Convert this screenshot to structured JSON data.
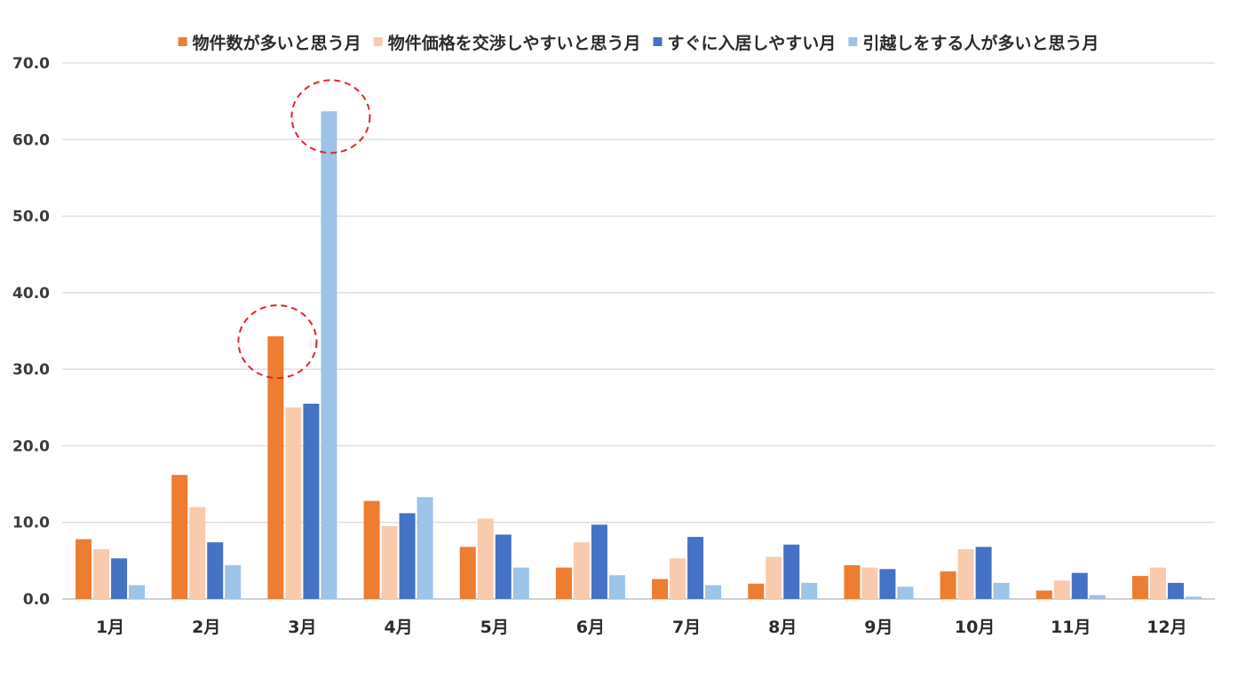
{
  "chart_data": {
    "type": "bar",
    "categories": [
      "1月",
      "2月",
      "3月",
      "4月",
      "5月",
      "6月",
      "7月",
      "8月",
      "9月",
      "10月",
      "11月",
      "12月"
    ],
    "series": [
      {
        "name": "物件数が多いと思う月",
        "color": "#ed7d31",
        "values": [
          7.8,
          16.2,
          34.3,
          12.8,
          6.8,
          4.1,
          2.6,
          2.0,
          4.4,
          3.6,
          1.1,
          3.0
        ]
      },
      {
        "name": "物件価格を交渉しやすいと思う月",
        "color": "#f8cbad",
        "values": [
          6.5,
          12.0,
          25.0,
          9.5,
          10.5,
          7.4,
          5.3,
          5.5,
          4.1,
          6.5,
          2.4,
          4.1
        ]
      },
      {
        "name": "すぐに入居しやすい月",
        "color": "#4472c4",
        "values": [
          5.3,
          7.4,
          25.5,
          11.2,
          8.4,
          9.7,
          8.1,
          7.1,
          3.9,
          6.8,
          3.4,
          2.1
        ]
      },
      {
        "name": "引越しをする人が多いと思う月",
        "color": "#9dc3e6",
        "values": [
          1.8,
          4.4,
          63.7,
          13.3,
          4.1,
          3.1,
          1.8,
          2.1,
          1.6,
          2.1,
          0.5,
          0.3
        ]
      }
    ],
    "ylim": [
      0,
      70
    ],
    "yticks": [
      "0.0",
      "10.0",
      "20.0",
      "30.0",
      "40.0",
      "50.0",
      "60.0",
      "70.0"
    ],
    "grid": true,
    "legend_position": "top",
    "highlights": [
      {
        "category": "3月",
        "series": "物件数が多いと思う月",
        "style": "red dashed circle"
      },
      {
        "category": "3月",
        "series": "引越しをする人が多いと思う月",
        "style": "red dashed circle"
      }
    ]
  }
}
